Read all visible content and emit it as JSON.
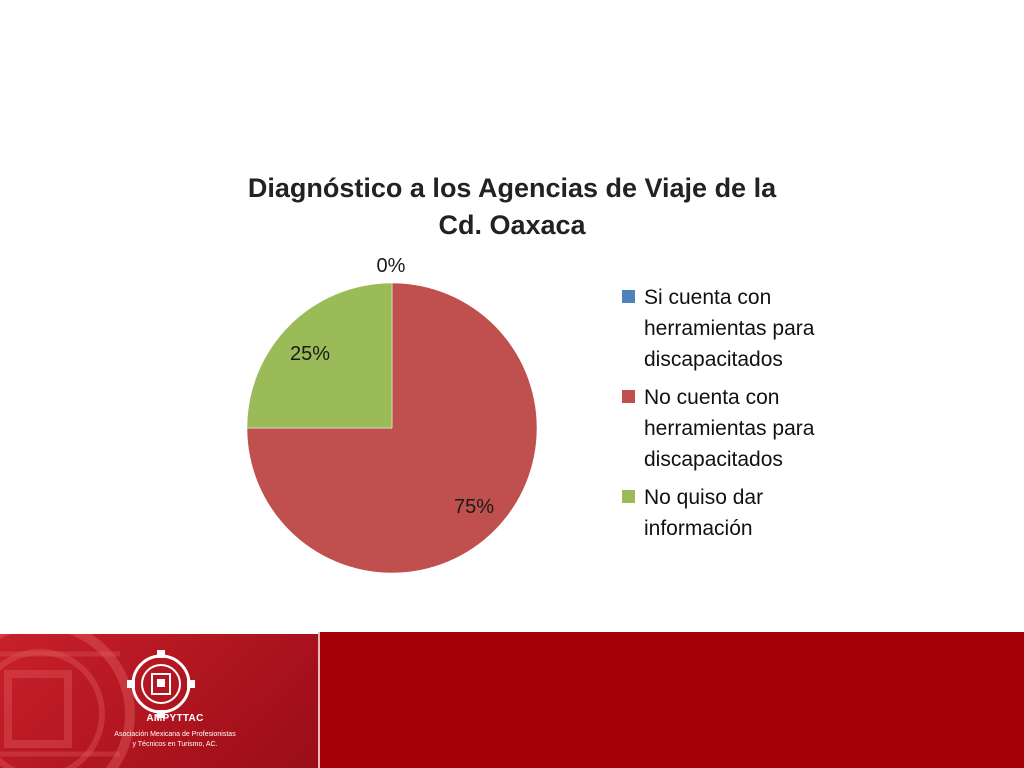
{
  "chart_data": {
    "type": "pie",
    "title": [
      "Diagnóstico a los Agencias de Viaje  de la",
      "Cd. Oaxaca"
    ],
    "slices": [
      {
        "label": "Si cuenta con\nherramientas para\ndiscapacitados",
        "value": 0,
        "data_label": "0%",
        "color": "#4f81bd"
      },
      {
        "label": "No cuenta con\nherramientas para\ndiscapacitados",
        "value": 75,
        "data_label": "75%",
        "color": "#c0504d"
      },
      {
        "label": "No quiso dar\ninformación",
        "value": 25,
        "data_label": "25%",
        "color": "#9bbb59"
      }
    ],
    "legend_position": "right"
  },
  "footer": {
    "org_short": "AMPYTTAC",
    "org_full_line1": "Asociación Mexicana de Profesionistas",
    "org_full_line2": "y Técnicos en Turismo, AC.",
    "accent_color": "#a50005"
  }
}
